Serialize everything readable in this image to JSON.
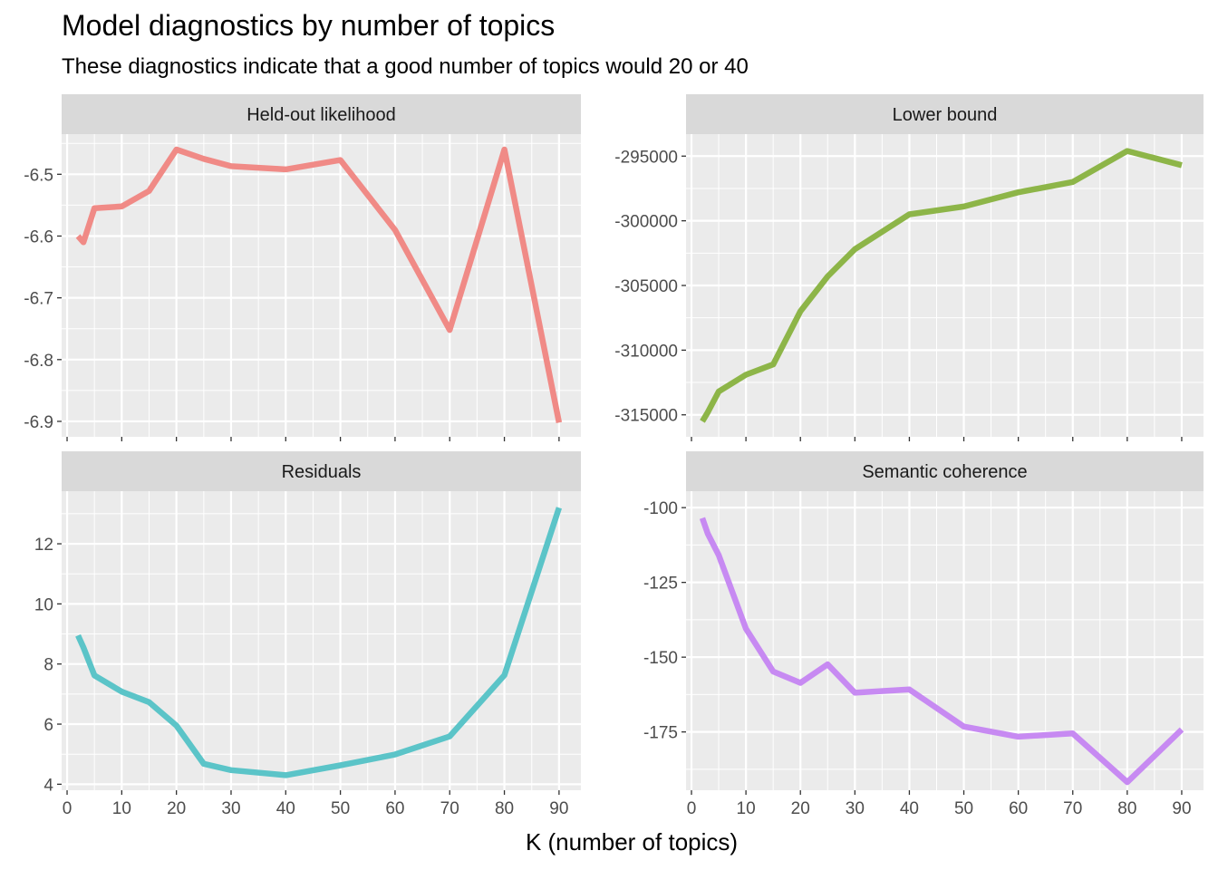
{
  "title": "Model diagnostics by number of topics",
  "subtitle": "These diagnostics indicate that a good number of topics would 20 or 40",
  "chart_data": [
    {
      "type": "line",
      "facet": "Held-out likelihood",
      "color": "#F08A86",
      "x": [
        2,
        3,
        5,
        10,
        15,
        20,
        25,
        30,
        40,
        50,
        60,
        70,
        80,
        90
      ],
      "values": [
        -6.6,
        -6.61,
        -6.555,
        -6.552,
        -6.527,
        -6.46,
        -6.475,
        -6.487,
        -6.492,
        -6.477,
        -6.59,
        -6.752,
        -6.46,
        -6.902
      ],
      "xlim": [
        -1,
        94
      ],
      "ylim": [
        -6.925,
        -6.435
      ],
      "xticks": [
        0,
        10,
        20,
        30,
        40,
        50,
        60,
        70,
        80,
        90
      ],
      "yticks": [
        -6.5,
        -6.6,
        -6.7,
        -6.8,
        -6.9
      ],
      "ytick_labels": [
        "-6.5",
        "-6.6",
        "-6.7",
        "-6.8",
        "-6.9"
      ]
    },
    {
      "type": "line",
      "facet": "Lower bound",
      "color": "#8DB548",
      "x": [
        2,
        3,
        5,
        10,
        15,
        20,
        25,
        30,
        40,
        50,
        60,
        70,
        80,
        90
      ],
      "values": [
        -315500,
        -314800,
        -313200,
        -311900,
        -311100,
        -307000,
        -304300,
        -302200,
        -299500,
        -298900,
        -297800,
        -297000,
        -294600,
        -295700
      ],
      "xlim": [
        -1,
        94
      ],
      "ylim": [
        -316700,
        -293300
      ],
      "xticks": [
        0,
        10,
        20,
        30,
        40,
        50,
        60,
        70,
        80,
        90
      ],
      "yticks": [
        -295000,
        -300000,
        -305000,
        -310000,
        -315000
      ],
      "ytick_labels": [
        "-295000",
        "-300000",
        "-305000",
        "-310000",
        "-315000"
      ]
    },
    {
      "type": "line",
      "facet": "Residuals",
      "color": "#5BC4C8",
      "x": [
        2,
        3,
        5,
        10,
        15,
        20,
        25,
        30,
        40,
        50,
        60,
        70,
        80,
        90
      ],
      "values": [
        8.95,
        8.55,
        7.62,
        7.08,
        6.73,
        5.95,
        4.68,
        4.47,
        4.3,
        4.63,
        4.99,
        5.59,
        7.63,
        13.2
      ],
      "xlim": [
        -1,
        94
      ],
      "ylim": [
        3.8,
        13.75
      ],
      "xticks": [
        0,
        10,
        20,
        30,
        40,
        50,
        60,
        70,
        80,
        90
      ],
      "xtick_labels": [
        "0",
        "10",
        "20",
        "30",
        "40",
        "50",
        "60",
        "70",
        "80",
        "90"
      ],
      "yticks": [
        4,
        6,
        8,
        10,
        12
      ],
      "ytick_labels": [
        "4",
        "6",
        "8",
        "10",
        "12"
      ]
    },
    {
      "type": "line",
      "facet": "Semantic coherence",
      "color": "#C78AF2",
      "x": [
        2,
        3,
        5,
        10,
        15,
        20,
        25,
        30,
        40,
        50,
        60,
        70,
        80,
        90
      ],
      "values": [
        -103.5,
        -108.7,
        -115.9,
        -140.5,
        -154.8,
        -158.6,
        -152.4,
        -161.9,
        -160.8,
        -173.2,
        -176.6,
        -175.5,
        -191.8,
        -174.2
      ],
      "xlim": [
        -1,
        94
      ],
      "ylim": [
        -194.5,
        -94.5
      ],
      "xticks": [
        0,
        10,
        20,
        30,
        40,
        50,
        60,
        70,
        80,
        90
      ],
      "xtick_labels": [
        "0",
        "10",
        "20",
        "30",
        "40",
        "50",
        "60",
        "70",
        "80",
        "90"
      ],
      "yticks": [
        -100,
        -125,
        -150,
        -175
      ],
      "ytick_labels": [
        "-100",
        "-125",
        "-150",
        "-175"
      ]
    }
  ],
  "xlabel": "K (number of topics)"
}
